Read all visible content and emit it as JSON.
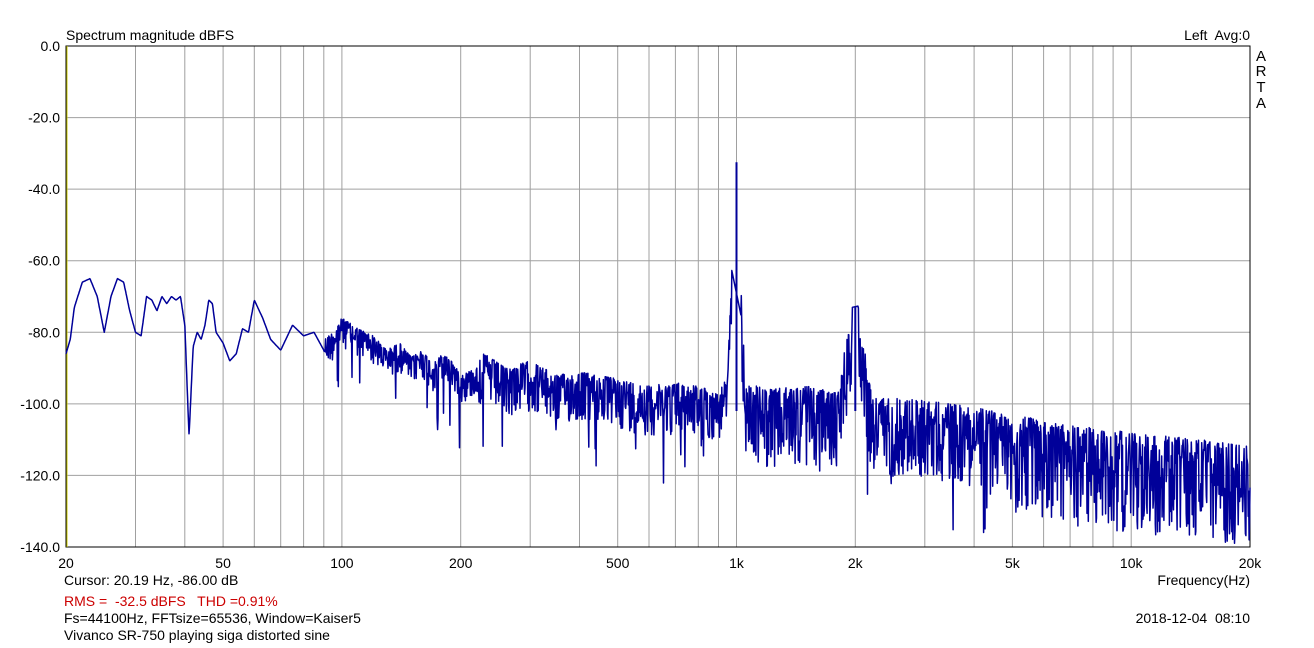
{
  "chart_data": {
    "type": "line",
    "title": "Spectrum magnitude dBFS",
    "channel_label": "Left  Avg:0",
    "brand": [
      "A",
      "R",
      "T",
      "A"
    ],
    "xlabel": "Frequency(Hz)",
    "xscale": "log",
    "xlim": [
      20,
      20000
    ],
    "ylim": [
      -140,
      0
    ],
    "grid": true,
    "x_ticks": [
      {
        "value": 20,
        "label": "20"
      },
      {
        "value": 50,
        "label": "50"
      },
      {
        "value": 100,
        "label": "100"
      },
      {
        "value": 200,
        "label": "200"
      },
      {
        "value": 500,
        "label": "500"
      },
      {
        "value": 1000,
        "label": "1k"
      },
      {
        "value": 2000,
        "label": "2k"
      },
      {
        "value": 5000,
        "label": "5k"
      },
      {
        "value": 10000,
        "label": "10k"
      },
      {
        "value": 20000,
        "label": "20k"
      }
    ],
    "y_ticks": [
      {
        "value": 0,
        "label": "0.0"
      },
      {
        "value": -20,
        "label": "-20.0"
      },
      {
        "value": -40,
        "label": "-40.0"
      },
      {
        "value": -60,
        "label": "-60.0"
      },
      {
        "value": -80,
        "label": "-80.0"
      },
      {
        "value": -100,
        "label": "-100.0"
      },
      {
        "value": -120,
        "label": "-120.0"
      },
      {
        "value": -140,
        "label": "-140.0"
      }
    ],
    "colors": {
      "trace": "#000099",
      "grid": "#a0a0a0",
      "cursor": "#cccc00",
      "red_text": "#cc0000"
    },
    "series": [
      {
        "x": [
          20,
          20.5,
          21,
          22,
          23,
          24,
          25,
          26,
          27,
          28,
          29,
          30,
          31,
          32,
          33,
          34,
          35,
          36,
          37,
          38,
          39,
          40,
          41,
          42,
          43,
          44,
          45,
          46,
          47,
          48,
          50,
          52,
          54,
          56,
          58,
          60,
          63,
          66,
          70,
          75,
          80,
          85,
          90,
          95,
          100,
          110,
          120,
          130,
          140,
          150,
          160,
          170,
          180,
          190,
          200,
          230,
          260,
          300,
          350,
          400,
          500,
          600,
          700,
          800,
          900,
          950,
          1000,
          1050,
          1200,
          1500,
          1800,
          2000,
          2200,
          3000,
          4000,
          5000,
          7000,
          10000,
          15000,
          20000
        ],
        "y": [
          -86,
          -82,
          -73,
          -66,
          -65,
          -70,
          -80,
          -70,
          -65,
          -66,
          -74,
          -80,
          -81,
          -70,
          -71,
          -74,
          -70,
          -72,
          -70,
          -71,
          -70,
          -78,
          -109,
          -84,
          -80,
          -82,
          -78,
          -71,
          -72,
          -80,
          -83,
          -88,
          -86,
          -79,
          -80,
          -71,
          -76,
          -82,
          -85,
          -78,
          -81,
          -80,
          -85,
          -83,
          -79,
          -82,
          -84,
          -88,
          -86,
          -90,
          -88,
          -92,
          -89,
          -91,
          -95,
          -92,
          -96,
          -94,
          -98,
          -97,
          -99,
          -101,
          -100,
          -101,
          -103,
          -98,
          -32,
          -100,
          -102,
          -101,
          -103,
          -73,
          -104,
          -105,
          -107,
          -109,
          -112,
          -114,
          -116,
          -118
        ]
      }
    ],
    "peaks": [
      {
        "x": 1000,
        "y": -32.5
      },
      {
        "x": 2000,
        "y": -73
      }
    ]
  },
  "footer": {
    "cursor": "Cursor: 20.19 Hz, -86.00 dB",
    "rms": "RMS =  -32.5 dBFS   THD =0.91%",
    "params": "Fs=44100Hz, FFTsize=65536, Window=Kaiser5",
    "description": "Vivanco SR-750 playing siga distorted sine",
    "timestamp": "2018-12-04  08:10"
  }
}
